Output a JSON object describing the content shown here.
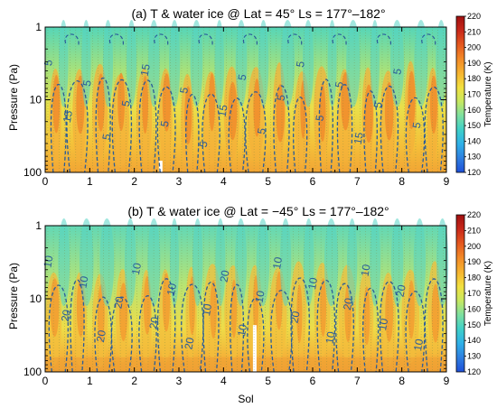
{
  "figure": {
    "xlabel": "Sol",
    "colorbar": {
      "label": "Temperature (K)",
      "min": 120,
      "max": 220,
      "ticks": [
        120,
        130,
        140,
        150,
        160,
        170,
        180,
        190,
        200,
        210,
        220
      ],
      "colors": [
        "#1f4fd8",
        "#2f7fe0",
        "#2fb0e8",
        "#3fd0c8",
        "#7ee0a0",
        "#c8e860",
        "#f2e040",
        "#f6b430",
        "#f28a28",
        "#e4581f",
        "#c8281a",
        "#a01010"
      ]
    }
  },
  "chart_data": [
    {
      "type": "heatmap",
      "title": "(a) T & water ice @ Lat = 45° Ls = 177°–182°",
      "xlabel": "",
      "ylabel": "Pressure (Pa)",
      "xlim": [
        0,
        9
      ],
      "ylim": [
        100,
        1
      ],
      "yscale": "log",
      "xticks": [
        "0",
        "1",
        "2",
        "3",
        "4",
        "5",
        "6",
        "7",
        "8",
        "9"
      ],
      "yticks": [
        "1",
        "10",
        "100"
      ],
      "contour_labels": [
        "5",
        "15",
        "5",
        "5",
        "5",
        "15",
        "5",
        "5",
        "5",
        "15",
        "5",
        "5",
        "5",
        "5",
        "5",
        "5",
        "15",
        "5",
        "5",
        "5"
      ],
      "temperature_range": [
        120,
        220
      ]
    },
    {
      "type": "heatmap",
      "title": "(b) T & water ice @ Lat = −45° Ls = 177°–182°",
      "xlabel": "Sol",
      "ylabel": "Pressure (Pa)",
      "xlim": [
        0,
        9
      ],
      "ylim": [
        100,
        1
      ],
      "yscale": "log",
      "xticks": [
        "0",
        "1",
        "2",
        "3",
        "4",
        "5",
        "6",
        "7",
        "8",
        "9"
      ],
      "yticks": [
        "1",
        "10",
        "100"
      ],
      "contour_labels": [
        "10",
        "20",
        "10",
        "20",
        "20",
        "10",
        "20",
        "10",
        "20",
        "10",
        "20",
        "10",
        "10",
        "10",
        "20",
        "10",
        "10",
        "20",
        "10",
        "10",
        "20",
        "10"
      ],
      "temperature_range": [
        120,
        220
      ]
    }
  ]
}
